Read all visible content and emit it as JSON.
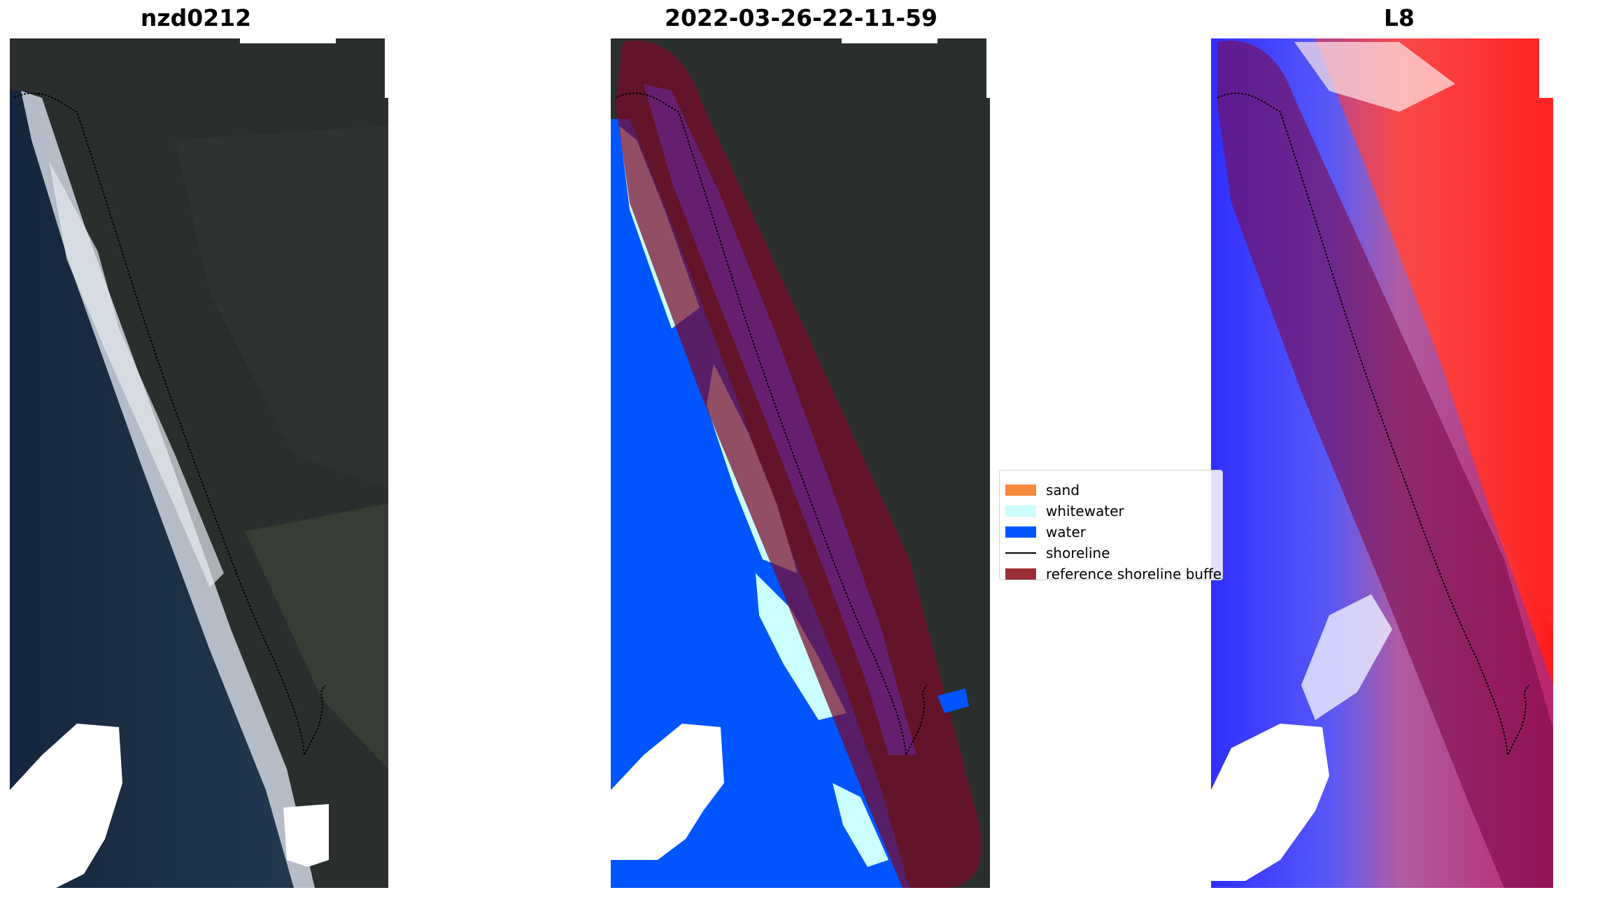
{
  "panels": [
    {
      "title": "nzd0212"
    },
    {
      "title": "2022-03-26-22-11-59"
    },
    {
      "title": "L8"
    }
  ],
  "legend": {
    "items": [
      {
        "label": "sand",
        "color": "#f58a3c",
        "kind": "patch"
      },
      {
        "label": "whitewater",
        "color": "#ccffff",
        "kind": "patch"
      },
      {
        "label": "water",
        "color": "#0055ff",
        "kind": "patch"
      },
      {
        "label": "shoreline",
        "color": "#000000",
        "kind": "line"
      },
      {
        "label": "reference shoreline buffer",
        "color": "#8b1a1a",
        "kind": "patch"
      }
    ]
  },
  "colors": {
    "land_dark": "#2b2f2e",
    "sea_dark": "#1a2f45",
    "surf": "#d9dde6",
    "water": "#0055ff",
    "whitewater": "#ccffff",
    "buffer": "#7a0a2a",
    "index_positive": "#ff2020",
    "index_negative": "#2020ff"
  }
}
